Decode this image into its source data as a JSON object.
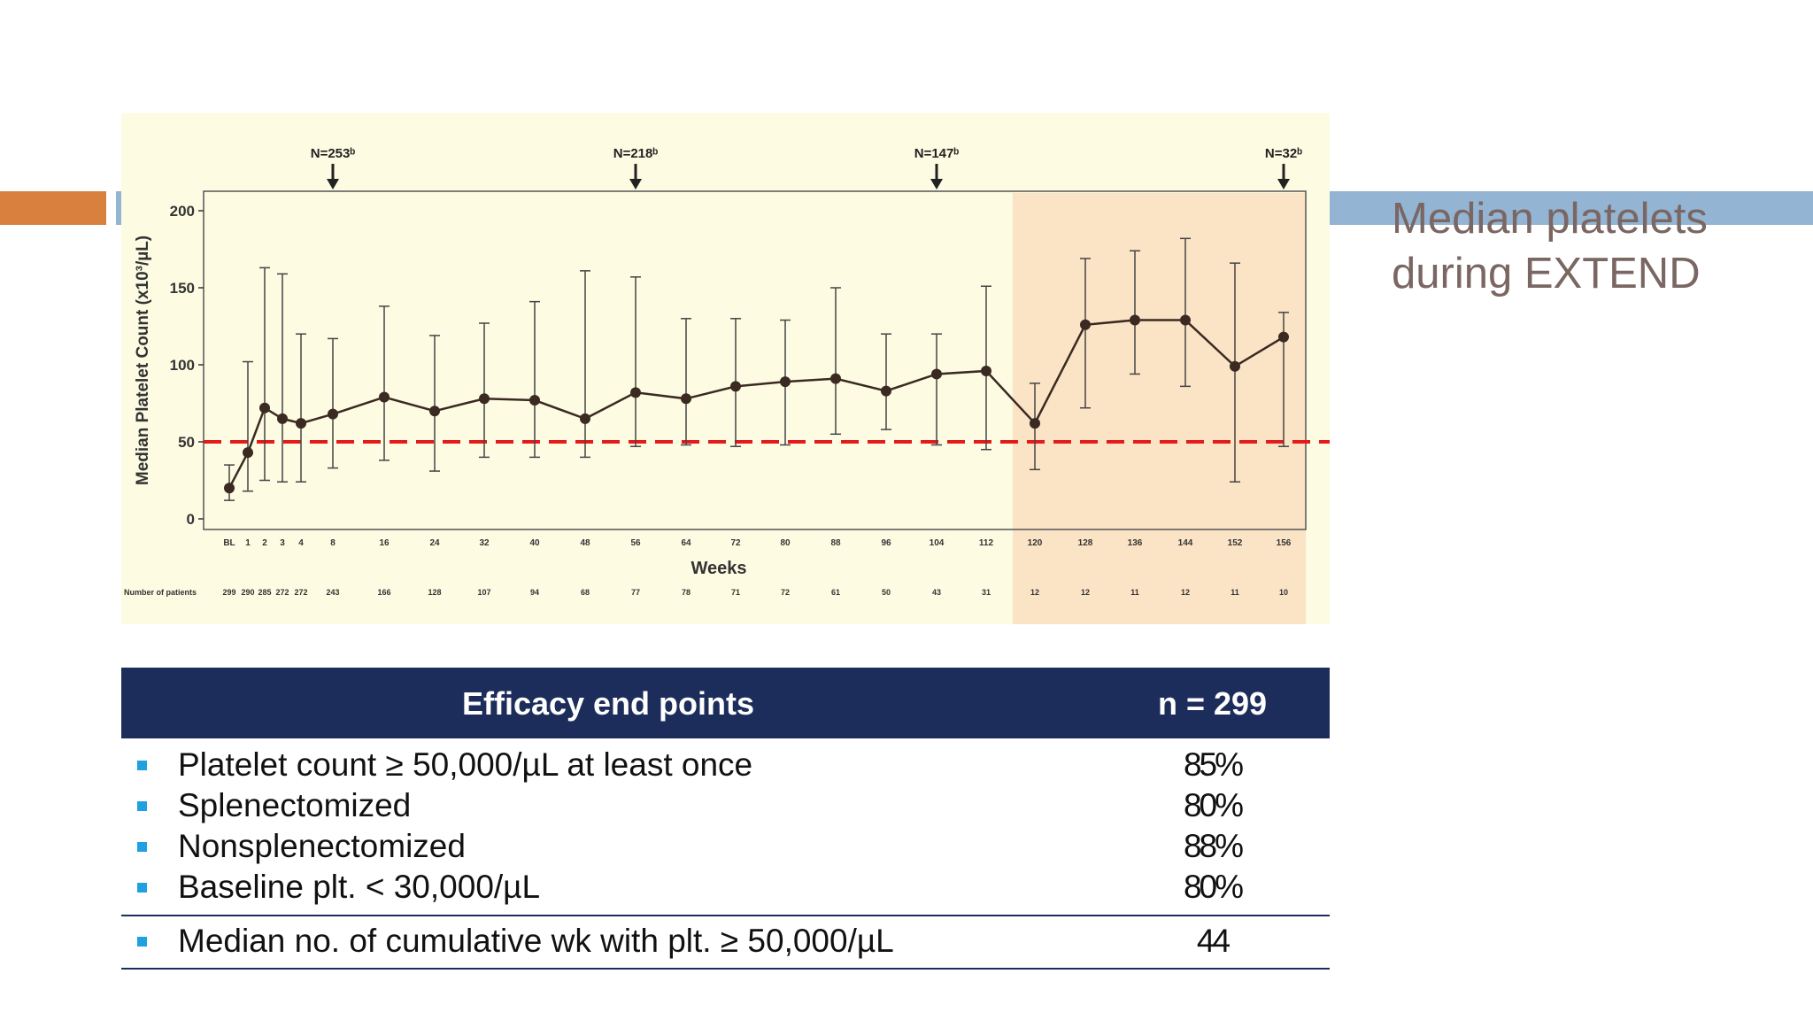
{
  "slide": {
    "title": "Median platelets\nduring EXTEND"
  },
  "colors": {
    "accent_orange": "#d9803f",
    "accent_blue": "#93b4d2",
    "header_navy": "#1d2d5b",
    "bullet_blue": "#1fa0e0",
    "threshold_red": "#e31b1b"
  },
  "chart_data": {
    "type": "line",
    "ylabel": "Median Platelet Count (x10³/µL)",
    "xlabel": "Weeks",
    "ylim": [
      0,
      200
    ],
    "yticks": [
      0,
      50,
      100,
      150,
      200
    ],
    "x_tick_labels": [
      "BL",
      "1",
      "2",
      "3",
      "4",
      "8",
      "16",
      "24",
      "32",
      "40",
      "48",
      "56",
      "64",
      "72",
      "80",
      "88",
      "96",
      "104",
      "112",
      "120",
      "128",
      "136",
      "144",
      "152",
      "156"
    ],
    "series": [
      {
        "values": [
          20,
          43,
          72,
          65,
          62,
          68,
          79,
          70,
          78,
          77,
          65,
          82,
          78,
          86,
          89,
          91,
          83,
          94,
          96,
          62,
          126,
          129,
          129,
          99,
          118
        ],
        "error_low": [
          12,
          18,
          25,
          24,
          24,
          33,
          38,
          31,
          40,
          40,
          40,
          47,
          48,
          47,
          48,
          55,
          58,
          48,
          45,
          32,
          72,
          94,
          86,
          24,
          47
        ],
        "error_high": [
          35,
          102,
          163,
          159,
          120,
          117,
          138,
          119,
          127,
          141,
          161,
          157,
          130,
          130,
          129,
          150,
          120,
          120,
          151,
          88,
          169,
          174,
          182,
          166,
          134
        ]
      }
    ],
    "threshold_line": 50,
    "shaded_region_start": "120",
    "arrows": [
      "N=253ᵇ",
      "N=218ᵇ",
      "N=147ᵇ",
      "N=32ᵇ"
    ],
    "arrow_at_ticks": [
      "8",
      "56",
      "104",
      "156"
    ],
    "patients_label": "Number of patients",
    "patients": [
      "299",
      "290",
      "285",
      "272",
      "272",
      "243",
      "166",
      "128",
      "107",
      "94",
      "68",
      "77",
      "78",
      "71",
      "72",
      "61",
      "50",
      "43",
      "31",
      "12",
      "12",
      "11",
      "12",
      "11",
      "10"
    ]
  },
  "table": {
    "header_left": "Efficacy end points",
    "header_right": "n = 299",
    "rows": [
      {
        "label": "Platelet count ≥ 50,000/µL at least once",
        "value": "85%"
      },
      {
        "label": "Splenectomized",
        "value": "80%"
      },
      {
        "label": "Nonsplenectomized",
        "value": "88%"
      },
      {
        "label": "Baseline plt. < 30,000/µL",
        "value": "80%"
      }
    ],
    "summary": {
      "label": "Median no. of cumulative wk with plt. ≥ 50,000/µL",
      "value": "44"
    }
  }
}
